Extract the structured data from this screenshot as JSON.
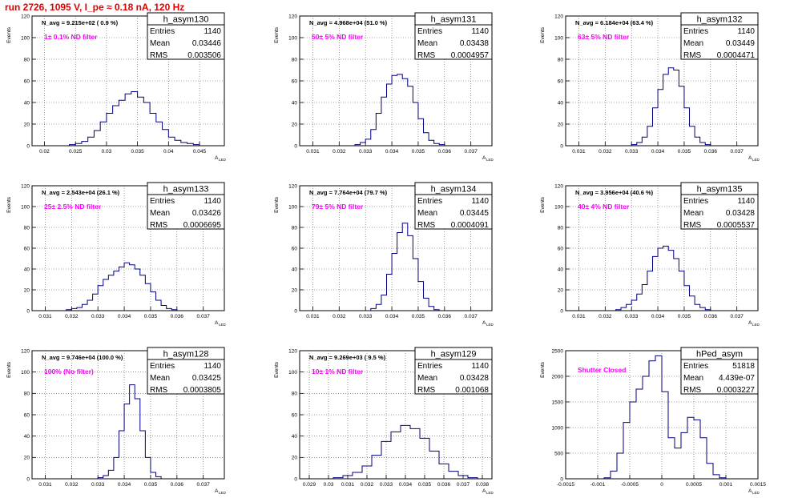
{
  "title": "run 2726,  1095 V, I_pe ≈ 0.18 nA, 120 Hz",
  "colors": {
    "title": "#e00000",
    "hist": "#000080",
    "grid": "#555555",
    "annotation": "#ff00ff"
  },
  "stat_labels": {
    "entries": "Entries",
    "mean": "Mean",
    "rms": "RMS"
  },
  "ylabel": "Events",
  "xlabel": "A",
  "xlabel_sub": "LED",
  "chart_data": [
    {
      "type": "bar",
      "name": "h_asym130",
      "navg": "N_avg = 9.215e+02 ( 0.9 %)",
      "filter": "1± 0.1% ND filter",
      "entries": "1140",
      "mean": "0.03446",
      "rms": "0.003506",
      "xlim": [
        0.018,
        0.049
      ],
      "ylim": [
        0,
        120
      ],
      "xticks": [
        0.02,
        0.025,
        0.03,
        0.035,
        0.04,
        0.045
      ],
      "xtick_labels": [
        "0.02",
        "0.025",
        "0.03",
        "0.035",
        "0.04",
        "0.045"
      ],
      "yticks": [
        0,
        20,
        40,
        60,
        80,
        100,
        120
      ],
      "bin_centers": [
        0.0245,
        0.0255,
        0.0265,
        0.0275,
        0.0285,
        0.0295,
        0.0305,
        0.0315,
        0.0325,
        0.0335,
        0.0345,
        0.0355,
        0.0365,
        0.0375,
        0.0385,
        0.0395,
        0.0405,
        0.0415,
        0.0425,
        0.0435,
        0.0445
      ],
      "values": [
        1,
        2,
        4,
        8,
        14,
        22,
        30,
        37,
        42,
        48,
        50,
        45,
        40,
        30,
        22,
        15,
        8,
        5,
        3,
        2,
        1
      ]
    },
    {
      "type": "bar",
      "name": "h_asym131",
      "navg": "N_avg = 4.968e+04 (51.0 %)",
      "filter": "50± 5% ND filter",
      "entries": "1140",
      "mean": "0.03438",
      "rms": "0.0004957",
      "xlim": [
        0.0305,
        0.0378
      ],
      "ylim": [
        0,
        120
      ],
      "xticks": [
        0.031,
        0.032,
        0.033,
        0.034,
        0.035,
        0.036,
        0.037
      ],
      "xtick_labels": [
        "0.031",
        "0.032",
        "0.033",
        "0.034",
        "0.035",
        "0.036",
        "0.037"
      ],
      "yticks": [
        0,
        20,
        40,
        60,
        80,
        100,
        120
      ],
      "bin_centers": [
        0.0327,
        0.0329,
        0.0331,
        0.0333,
        0.0335,
        0.0337,
        0.0339,
        0.0341,
        0.0343,
        0.0345,
        0.0347,
        0.0349,
        0.0351,
        0.0353,
        0.0355,
        0.0357,
        0.0359
      ],
      "values": [
        1,
        3,
        6,
        15,
        30,
        45,
        57,
        65,
        66,
        62,
        55,
        40,
        25,
        12,
        5,
        2,
        1
      ]
    },
    {
      "type": "bar",
      "name": "h_asym132",
      "navg": "N_avg = 6.184e+04 (63.4 %)",
      "filter": "63± 5% ND filter",
      "entries": "1140",
      "mean": "0.03449",
      "rms": "0.0004471",
      "xlim": [
        0.0305,
        0.0378
      ],
      "ylim": [
        0,
        120
      ],
      "xticks": [
        0.031,
        0.032,
        0.033,
        0.034,
        0.035,
        0.036,
        0.037
      ],
      "xtick_labels": [
        "0.031",
        "0.032",
        "0.033",
        "0.034",
        "0.035",
        "0.036",
        "0.037"
      ],
      "yticks": [
        0,
        20,
        40,
        60,
        80,
        100,
        120
      ],
      "bin_centers": [
        0.0331,
        0.0333,
        0.0335,
        0.0337,
        0.0339,
        0.0341,
        0.0343,
        0.0345,
        0.0347,
        0.0349,
        0.0351,
        0.0353,
        0.0355,
        0.0357,
        0.0359
      ],
      "values": [
        1,
        3,
        8,
        18,
        35,
        52,
        66,
        72,
        70,
        55,
        35,
        18,
        8,
        3,
        1
      ]
    },
    {
      "type": "bar",
      "name": "h_asym133",
      "navg": "N_avg = 2.543e+04 (26.1 %)",
      "filter": "25± 2.5% ND filter",
      "entries": "1140",
      "mean": "0.03426",
      "rms": "0.0006695",
      "xlim": [
        0.0305,
        0.0378
      ],
      "ylim": [
        0,
        120
      ],
      "xticks": [
        0.031,
        0.032,
        0.033,
        0.034,
        0.035,
        0.036,
        0.037
      ],
      "xtick_labels": [
        "0.031",
        "0.032",
        "0.033",
        "0.034",
        "0.035",
        "0.036",
        "0.037"
      ],
      "yticks": [
        0,
        20,
        40,
        60,
        80,
        100,
        120
      ],
      "bin_centers": [
        0.0319,
        0.0321,
        0.0323,
        0.0325,
        0.0327,
        0.0329,
        0.0331,
        0.0333,
        0.0335,
        0.0337,
        0.0339,
        0.0341,
        0.0343,
        0.0345,
        0.0347,
        0.0349,
        0.0351,
        0.0353,
        0.0355,
        0.0357,
        0.0359
      ],
      "values": [
        1,
        2,
        3,
        6,
        10,
        16,
        24,
        30,
        34,
        38,
        42,
        46,
        44,
        40,
        34,
        26,
        18,
        10,
        5,
        2,
        1
      ]
    },
    {
      "type": "bar",
      "name": "h_asym134",
      "navg": "N_avg = 7.764e+04 (79.7 %)",
      "filter": "79± 5% ND filter",
      "entries": "1140",
      "mean": "0.03445",
      "rms": "0.0004091",
      "xlim": [
        0.0305,
        0.0378
      ],
      "ylim": [
        0,
        120
      ],
      "xticks": [
        0.031,
        0.032,
        0.033,
        0.034,
        0.035,
        0.036,
        0.037
      ],
      "xtick_labels": [
        "0.031",
        "0.032",
        "0.033",
        "0.034",
        "0.035",
        "0.036",
        "0.037"
      ],
      "yticks": [
        0,
        20,
        40,
        60,
        80,
        100,
        120
      ],
      "bin_centers": [
        0.0333,
        0.0335,
        0.0337,
        0.0339,
        0.0341,
        0.0343,
        0.0345,
        0.0347,
        0.0349,
        0.0351,
        0.0353,
        0.0355,
        0.0357
      ],
      "values": [
        2,
        6,
        15,
        35,
        55,
        75,
        84,
        72,
        50,
        28,
        12,
        4,
        1
      ]
    },
    {
      "type": "bar",
      "name": "h_asym135",
      "navg": "N_avg = 3.956e+04 (40.6 %)",
      "filter": "40± 4% ND filter",
      "entries": "1140",
      "mean": "0.03428",
      "rms": "0.0005537",
      "xlim": [
        0.0305,
        0.0378
      ],
      "ylim": [
        0,
        120
      ],
      "xticks": [
        0.031,
        0.032,
        0.033,
        0.034,
        0.035,
        0.036,
        0.037
      ],
      "xtick_labels": [
        "0.031",
        "0.032",
        "0.033",
        "0.034",
        "0.035",
        "0.036",
        "0.037"
      ],
      "yticks": [
        0,
        20,
        40,
        60,
        80,
        100,
        120
      ],
      "bin_centers": [
        0.0325,
        0.0327,
        0.0329,
        0.0331,
        0.0333,
        0.0335,
        0.0337,
        0.0339,
        0.0341,
        0.0343,
        0.0345,
        0.0347,
        0.0349,
        0.0351,
        0.0353,
        0.0355,
        0.0357,
        0.0359
      ],
      "values": [
        1,
        3,
        6,
        10,
        16,
        25,
        38,
        52,
        60,
        62,
        58,
        50,
        38,
        24,
        14,
        6,
        3,
        1
      ]
    },
    {
      "type": "bar",
      "name": "h_asym128",
      "navg": "N_avg = 9.746e+04 (100.0 %)",
      "filter": "100% (No filter)",
      "entries": "1140",
      "mean": "0.03425",
      "rms": "0.0003805",
      "xlim": [
        0.0305,
        0.0378
      ],
      "ylim": [
        0,
        120
      ],
      "xticks": [
        0.031,
        0.032,
        0.033,
        0.034,
        0.035,
        0.036,
        0.037
      ],
      "xtick_labels": [
        "0.031",
        "0.032",
        "0.033",
        "0.034",
        "0.035",
        "0.036",
        "0.037"
      ],
      "yticks": [
        0,
        20,
        40,
        60,
        80,
        100,
        120
      ],
      "bin_centers": [
        0.0331,
        0.0333,
        0.0335,
        0.0337,
        0.0339,
        0.0341,
        0.0343,
        0.0345,
        0.0347,
        0.0349,
        0.0351,
        0.0353
      ],
      "values": [
        1,
        3,
        8,
        20,
        45,
        70,
        88,
        75,
        45,
        20,
        6,
        2
      ]
    },
    {
      "type": "bar",
      "name": "h_asym129",
      "navg": "N_avg = 9.269e+03 ( 9.5 %)",
      "filter": "10± 1% ND filter",
      "entries": "1140",
      "mean": "0.03428",
      "rms": "0.001068",
      "xlim": [
        0.0285,
        0.0385
      ],
      "ylim": [
        0,
        120
      ],
      "xticks": [
        0.029,
        0.03,
        0.031,
        0.032,
        0.033,
        0.034,
        0.035,
        0.036,
        0.037,
        0.038
      ],
      "xtick_labels": [
        "0.029",
        "0.03",
        "0.031",
        "0.032",
        "0.033",
        "0.034",
        "0.035",
        "0.036",
        "0.037",
        "0.038"
      ],
      "yticks": [
        0,
        20,
        40,
        60,
        80,
        100,
        120
      ],
      "bin_centers": [
        0.0305,
        0.031,
        0.0315,
        0.032,
        0.0325,
        0.033,
        0.0335,
        0.034,
        0.0345,
        0.035,
        0.0355,
        0.036,
        0.0365,
        0.037,
        0.0375
      ],
      "values": [
        1,
        3,
        6,
        12,
        22,
        35,
        44,
        50,
        47,
        38,
        26,
        14,
        7,
        3,
        1
      ]
    },
    {
      "type": "bar",
      "name": "hPed_asym",
      "navg": "",
      "filter": "Shutter Closed",
      "entries": "51818",
      "mean": "4.439e-07",
      "rms": "0.0003227",
      "xlim": [
        -0.0015,
        0.0015
      ],
      "ylim": [
        0,
        2500
      ],
      "xticks": [
        -0.0015,
        -0.001,
        -0.0005,
        0,
        0.0005,
        0.001,
        0.0015
      ],
      "xtick_labels": [
        "-0.0015",
        "-0.001",
        "-0.0005",
        "0",
        "0.0005",
        "0.001",
        "0.0015"
      ],
      "yticks": [
        0,
        500,
        1000,
        1500,
        2000,
        2500
      ],
      "bin_centers": [
        -0.00085,
        -0.00075,
        -0.00065,
        -0.00055,
        -0.00045,
        -0.00035,
        -0.00025,
        -0.00015,
        -5e-05,
        5e-05,
        0.00015,
        0.00025,
        0.00035,
        0.00045,
        0.00055,
        0.00065,
        0.00075,
        0.00085,
        0.00095
      ],
      "values": [
        20,
        150,
        500,
        1100,
        1500,
        1750,
        2000,
        2300,
        2400,
        1700,
        800,
        600,
        900,
        1200,
        1150,
        800,
        300,
        80,
        20
      ]
    }
  ]
}
